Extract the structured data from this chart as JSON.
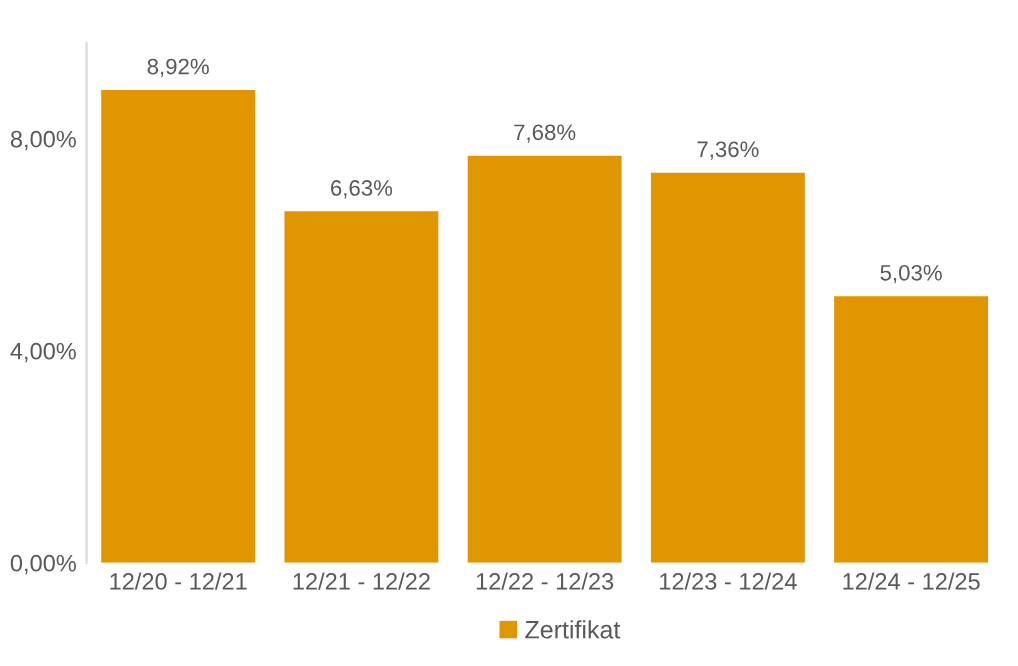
{
  "chart_data": {
    "type": "bar",
    "categories": [
      "12/20 - 12/21",
      "12/21 - 12/22",
      "12/22 - 12/23",
      "12/23 - 12/24",
      "12/24 - 12/25"
    ],
    "series": [
      {
        "name": "Zertifikat",
        "color": "#e09600",
        "values": [
          8.92,
          6.63,
          7.68,
          7.36,
          5.03
        ],
        "value_labels": [
          "8,92%",
          "6,63%",
          "7,68%",
          "7,36%",
          "5,03%"
        ]
      }
    ],
    "ylim": [
      0,
      9.8
    ],
    "yticks": [
      {
        "value": 0,
        "label": "0,00%"
      },
      {
        "value": 4,
        "label": "4,00%"
      },
      {
        "value": 8,
        "label": "8,00%"
      }
    ],
    "grid": false,
    "legend": "bottom"
  }
}
